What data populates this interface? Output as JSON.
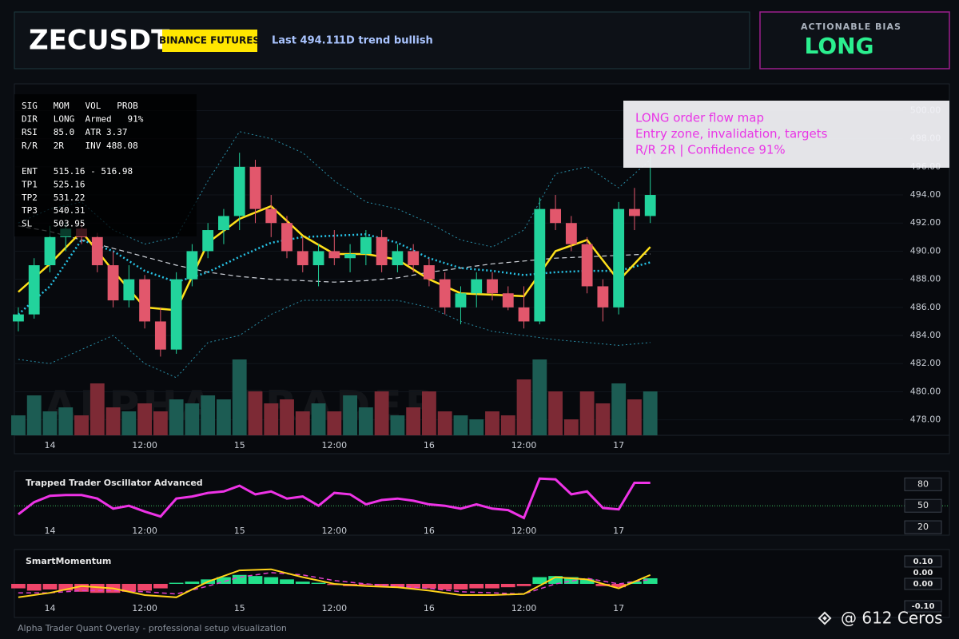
{
  "header": {
    "symbol": "ZECUSDT",
    "exchange": "BINANCE FUTURES",
    "last": "Last 494.11",
    "trend": "1D trend bullish"
  },
  "bias": {
    "title": "ACTIONABLE BIAS",
    "value": "LONG"
  },
  "setup_panel": {
    "rows": [
      "SIG   MOM   VOL   PROB",
      "DIR   LONG  Armed   91%",
      "RSI   85.0  ATR 3.37",
      "R/R   2R    INV 488.08"
    ],
    "levels": [
      "ENT   515.16 - 516.98",
      "TP1   525.16",
      "TP2   531.22",
      "TP3   540.31",
      "SL    503.95"
    ]
  },
  "info_box": [
    "LONG order flow map",
    "Entry zone, invalidation, targets",
    "R/R 2R | Confidence 91%"
  ],
  "watermark": "ALPHA TRADER",
  "footer": "Alpha Trader Quant Overlay - professional setup visualization",
  "credit": "@ 612 Ceros",
  "chart_data": [
    {
      "type": "candlestick",
      "x": [
        -4,
        -2,
        0,
        2,
        4,
        6,
        8,
        10,
        12,
        14,
        16,
        18,
        20,
        22,
        24,
        26,
        28,
        30,
        32,
        34,
        36,
        38,
        40,
        42,
        44,
        46,
        48,
        50,
        52,
        54,
        56,
        58,
        60,
        62,
        64,
        66,
        68,
        70,
        72,
        74,
        76
      ],
      "open": [
        485,
        485.5,
        489,
        491,
        491.6,
        491,
        489,
        486.5,
        488,
        485,
        483,
        488,
        490,
        491.5,
        492.5,
        496,
        493,
        492,
        490,
        489,
        490,
        489.5,
        489.8,
        491,
        489,
        490,
        489,
        488,
        486,
        487,
        488,
        487,
        486,
        485,
        493,
        492,
        490.5,
        487.5,
        486,
        493,
        492.5
      ],
      "high": [
        486,
        489.5,
        491.8,
        492,
        492,
        491.3,
        490,
        489,
        488.3,
        486,
        488.5,
        490.5,
        492,
        493,
        497,
        496.5,
        494,
        492.5,
        491,
        490.5,
        491.5,
        490.5,
        491.5,
        491.5,
        490.5,
        490.5,
        489.5,
        488.5,
        487.5,
        488.5,
        488.5,
        487.5,
        487.5,
        493.8,
        494,
        492.5,
        491,
        488,
        493.5,
        494.5,
        497
      ],
      "low": [
        484.3,
        485.2,
        488.5,
        490,
        490.5,
        488.5,
        486,
        486,
        484.5,
        482.5,
        482.7,
        487.5,
        489.5,
        490.5,
        491.5,
        492,
        491,
        489.5,
        488.5,
        487.5,
        489,
        488.5,
        489,
        488.5,
        488.5,
        488.5,
        487.5,
        485.5,
        484.8,
        486,
        486.5,
        485.8,
        484.5,
        484.8,
        491.5,
        490,
        487,
        485,
        485.5,
        491.5,
        492
      ],
      "close": [
        485.5,
        489,
        491,
        491.6,
        491,
        489,
        486.5,
        488,
        485,
        483,
        488,
        490,
        491.5,
        492.5,
        496,
        493,
        492,
        490,
        489,
        490,
        489.5,
        489.8,
        491,
        489,
        490,
        489,
        488,
        486,
        487,
        488,
        487,
        486,
        485,
        493,
        492,
        490.5,
        487.5,
        486,
        493,
        492.5,
        494
      ],
      "volume": [
        25,
        50,
        30,
        35,
        25,
        65,
        35,
        30,
        40,
        30,
        45,
        40,
        50,
        45,
        95,
        55,
        40,
        45,
        30,
        40,
        30,
        50,
        35,
        55,
        25,
        35,
        55,
        30,
        25,
        20,
        30,
        25,
        70,
        95,
        55,
        20,
        55,
        40,
        65,
        45,
        55
      ],
      "up_color": "#22d39c",
      "down_color": "#e2576c",
      "volume_up_color": "#1c5c53",
      "volume_down_color": "#7d2a35",
      "series": [
        {
          "color": "#2a8fa8",
          "style": "dotted",
          "width": 1,
          "x": [
            -4,
            0,
            4,
            8,
            12,
            16,
            20,
            24,
            28,
            32,
            36,
            40,
            44,
            48,
            52,
            56,
            60,
            64,
            68,
            72,
            76
          ],
          "values": [
            492,
            493,
            493.5,
            491.5,
            490.5,
            491,
            495,
            498.5,
            498,
            497,
            495,
            493.5,
            493,
            492,
            490.8,
            490.3,
            491.5,
            495.5,
            496,
            494.5,
            496.5
          ]
        },
        {
          "color": "#2a8fa8",
          "style": "dotted",
          "width": 1,
          "x": [
            -4,
            0,
            4,
            8,
            12,
            16,
            20,
            24,
            28,
            32,
            36,
            40,
            44,
            48,
            52,
            56,
            60,
            64,
            68,
            72,
            76
          ],
          "values": [
            482.3,
            482,
            483,
            484,
            482,
            481,
            483.5,
            484,
            485.5,
            486.5,
            486.5,
            486.5,
            486.5,
            486,
            485,
            484.3,
            484,
            483.7,
            483.5,
            483.3,
            483.5
          ]
        },
        {
          "color": "#cfd3da",
          "style": "dashed",
          "width": 1.2,
          "x": [
            -4,
            0,
            4,
            8,
            12,
            16,
            20,
            24,
            28,
            32,
            36,
            40,
            44,
            48,
            52,
            56,
            60,
            64,
            68,
            72,
            76
          ],
          "values": [
            491.8,
            491.4,
            490.8,
            490.2,
            489.6,
            489,
            488.5,
            488.2,
            488,
            487.9,
            487.8,
            487.9,
            488.1,
            488.5,
            488.8,
            489.1,
            489.3,
            489.5,
            489.6,
            489.7,
            489.8
          ]
        },
        {
          "color": "#27c3e6",
          "style": "dotted",
          "width": 2.5,
          "x": [
            -4,
            0,
            4,
            8,
            12,
            16,
            20,
            24,
            28,
            32,
            36,
            40,
            44,
            48,
            52,
            56,
            60,
            64,
            68,
            72,
            76
          ],
          "values": [
            485.5,
            487.5,
            490.8,
            490,
            488.6,
            487.8,
            488.5,
            489.6,
            490.6,
            491,
            491.1,
            491.2,
            490.6,
            489.5,
            488.8,
            488.6,
            488.3,
            488.5,
            488.6,
            488.6,
            489.2
          ]
        },
        {
          "color": "#ffe11a",
          "style": "solid",
          "width": 2.5,
          "x": [
            -4,
            0,
            4,
            8,
            12,
            16,
            20,
            24,
            28,
            32,
            36,
            40,
            44,
            48,
            52,
            56,
            60,
            64,
            68,
            72,
            76
          ],
          "values": [
            487.1,
            489.1,
            491.4,
            488.6,
            486,
            485.8,
            490.6,
            492.3,
            493.2,
            491.1,
            489.8,
            489.8,
            489.4,
            488,
            487,
            486.9,
            486.8,
            490,
            490.8,
            487.9,
            490.3
          ]
        }
      ],
      "xlim": [
        -4.5,
        108
      ],
      "xticks": [
        {
          "value": 0,
          "label": "14"
        },
        {
          "value": 12,
          "label": "12:00"
        },
        {
          "value": 24,
          "label": "15"
        },
        {
          "value": 36,
          "label": "12:00"
        },
        {
          "value": 48,
          "label": "16"
        },
        {
          "value": 60,
          "label": "12:00"
        },
        {
          "value": 72,
          "label": "17"
        }
      ],
      "ylim": [
        476.9,
        501.9
      ],
      "yticks": [
        {
          "value": 478,
          "label": "478.00"
        },
        {
          "value": 480,
          "label": "480.00"
        },
        {
          "value": 482,
          "label": "482.00"
        },
        {
          "value": 484,
          "label": "484.00"
        },
        {
          "value": 486,
          "label": "486.00"
        },
        {
          "value": 488,
          "label": "488.00"
        },
        {
          "value": 490,
          "label": "490.00"
        },
        {
          "value": 492,
          "label": "492.00"
        },
        {
          "value": 494,
          "label": "494.00"
        },
        {
          "value": 496,
          "label": "496.00"
        },
        {
          "value": 498,
          "label": "498.00"
        },
        {
          "value": 500,
          "label": "500.00"
        }
      ],
      "grid": true
    },
    {
      "type": "line",
      "title": "Trapped Trader Oscillator Advanced",
      "x": [
        -4,
        -2,
        0,
        2,
        4,
        6,
        8,
        10,
        12,
        14,
        16,
        18,
        20,
        22,
        24,
        26,
        28,
        30,
        32,
        34,
        36,
        38,
        40,
        42,
        44,
        46,
        48,
        50,
        52,
        54,
        56,
        58,
        60,
        62,
        64,
        66,
        68,
        70,
        72,
        74,
        76
      ],
      "values": [
        38,
        55,
        64,
        65,
        65,
        60,
        46,
        50,
        42,
        35,
        60,
        63,
        68,
        70,
        78,
        66,
        70,
        60,
        63,
        50,
        68,
        66,
        52,
        58,
        60,
        57,
        52,
        50,
        46,
        52,
        46,
        44,
        33,
        88,
        87,
        66,
        70,
        47,
        45,
        82,
        82
      ],
      "color": "#ee33e6",
      "hline": 50,
      "hline_color": "#3fbf5f",
      "xlim": [
        -4.5,
        108
      ],
      "xticks": [
        {
          "value": 0,
          "label": "14"
        },
        {
          "value": 12,
          "label": "12:00"
        },
        {
          "value": 24,
          "label": "15"
        },
        {
          "value": 36,
          "label": "12:00"
        },
        {
          "value": 48,
          "label": "16"
        },
        {
          "value": 60,
          "label": "12:00"
        },
        {
          "value": 72,
          "label": "17"
        }
      ],
      "ylim": [
        29,
        96
      ],
      "yticks": [
        80,
        50,
        20
      ]
    },
    {
      "type": "momentum",
      "title": "SmartMomentum",
      "x": [
        -4,
        -2,
        0,
        2,
        4,
        6,
        8,
        10,
        12,
        14,
        16,
        18,
        20,
        22,
        24,
        26,
        28,
        30,
        32,
        34,
        36,
        38,
        40,
        42,
        44,
        46,
        48,
        50,
        52,
        54,
        56,
        58,
        60,
        62,
        64,
        66,
        68,
        70,
        72,
        74,
        76
      ],
      "values": [
        -0.02,
        -0.03,
        -0.025,
        -0.03,
        -0.035,
        -0.04,
        -0.04,
        -0.035,
        -0.03,
        -0.02,
        0.005,
        0.01,
        0.02,
        0.03,
        0.04,
        0.035,
        0.03,
        0.02,
        0.01,
        0.005,
        -0.005,
        -0.01,
        -0.005,
        -0.01,
        -0.015,
        -0.02,
        -0.02,
        -0.025,
        -0.025,
        -0.02,
        -0.02,
        -0.015,
        -0.01,
        0.03,
        0.035,
        0.03,
        0.02,
        -0.01,
        -0.015,
        0.01,
        0.025
      ],
      "up_color": "#22e08a",
      "down_color": "#f0456a",
      "series": [
        {
          "color": "#e040c8",
          "style": "dashed",
          "width": 1.5,
          "x": [
            -4,
            0,
            4,
            8,
            12,
            16,
            20,
            24,
            28,
            32,
            36,
            40,
            44,
            48,
            52,
            56,
            60,
            64,
            68,
            72,
            76
          ],
          "values": [
            -0.04,
            -0.04,
            -0.03,
            -0.03,
            -0.035,
            -0.045,
            -0.01,
            0.03,
            0.05,
            0.04,
            0.015,
            0,
            -0.01,
            -0.02,
            -0.035,
            -0.04,
            -0.045,
            0,
            0.025,
            0,
            0.02
          ]
        },
        {
          "color": "#ffd21a",
          "style": "solid",
          "width": 2,
          "x": [
            -4,
            0,
            4,
            8,
            12,
            16,
            20,
            24,
            28,
            32,
            36,
            40,
            44,
            48,
            52,
            56,
            60,
            64,
            68,
            72,
            76
          ],
          "values": [
            -0.06,
            -0.04,
            -0.01,
            -0.02,
            -0.05,
            -0.06,
            0.01,
            0.06,
            0.065,
            0.03,
            0,
            -0.01,
            -0.015,
            -0.03,
            -0.05,
            -0.05,
            -0.045,
            0.03,
            0.02,
            -0.02,
            0.04
          ]
        }
      ],
      "value_label": "0.00",
      "xlim": [
        -4.5,
        108
      ],
      "xticks": [
        {
          "value": 0,
          "label": "14"
        },
        {
          "value": 12,
          "label": "12:00"
        },
        {
          "value": 24,
          "label": "15"
        },
        {
          "value": 36,
          "label": "12:00"
        },
        {
          "value": 48,
          "label": "16"
        },
        {
          "value": 60,
          "label": "12:00"
        },
        {
          "value": 72,
          "label": "17"
        }
      ],
      "ylim": [
        -0.139,
        0.146
      ],
      "yticks": [
        {
          "value": 0.1,
          "label": "0.10"
        },
        {
          "value": 0,
          "label": "0.00"
        },
        {
          "value": -0.1,
          "label": "-0.10"
        }
      ]
    }
  ]
}
